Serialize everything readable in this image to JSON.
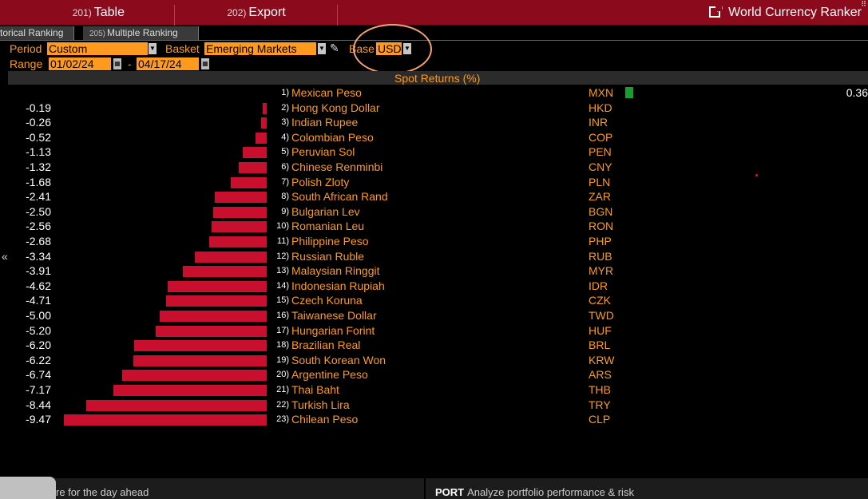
{
  "toolbar": {
    "table_num": "201)",
    "table_label": "Table",
    "export_num": "202)",
    "export_label": "Export",
    "title": "World Currency Ranker"
  },
  "tabs": [
    {
      "num": "",
      "label": "torical Ranking"
    },
    {
      "num": "205)",
      "label": "Multiple Ranking"
    }
  ],
  "controls": {
    "period_label": "Period",
    "period_value": "Custom",
    "basket_label": "Basket",
    "basket_value": "Emerging Markets",
    "base_label": "Base",
    "base_value": "USD",
    "range_label": "Range",
    "range_start": "01/02/24",
    "range_sep": "-",
    "range_end": "04/17/24"
  },
  "column_header": "Spot Returns (%)",
  "chart_data": {
    "type": "bar",
    "title": "Spot Returns (%)",
    "rows": [
      {
        "rank": "1)",
        "name": "Mexican Peso",
        "code": "MXN",
        "value": 0.36,
        "label": "0.36"
      },
      {
        "rank": "2)",
        "name": "Hong Kong Dollar",
        "code": "HKD",
        "value": -0.19,
        "label": "-0.19"
      },
      {
        "rank": "3)",
        "name": "Indian Rupee",
        "code": "INR",
        "value": -0.26,
        "label": "-0.26"
      },
      {
        "rank": "4)",
        "name": "Colombian Peso",
        "code": "COP",
        "value": -0.52,
        "label": "-0.52"
      },
      {
        "rank": "5)",
        "name": "Peruvian Sol",
        "code": "PEN",
        "value": -1.13,
        "label": "-1.13"
      },
      {
        "rank": "6)",
        "name": "Chinese Renminbi",
        "code": "CNY",
        "value": -1.32,
        "label": "-1.32"
      },
      {
        "rank": "7)",
        "name": "Polish Zloty",
        "code": "PLN",
        "value": -1.68,
        "label": "-1.68"
      },
      {
        "rank": "8)",
        "name": "South African Rand",
        "code": "ZAR",
        "value": -2.41,
        "label": "-2.41"
      },
      {
        "rank": "9)",
        "name": "Bulgarian Lev",
        "code": "BGN",
        "value": -2.5,
        "label": "-2.50"
      },
      {
        "rank": "10)",
        "name": "Romanian Leu",
        "code": "RON",
        "value": -2.56,
        "label": "-2.56"
      },
      {
        "rank": "11)",
        "name": "Philippine Peso",
        "code": "PHP",
        "value": -2.68,
        "label": "-2.68"
      },
      {
        "rank": "12)",
        "name": "Russian Ruble",
        "code": "RUB",
        "value": -3.34,
        "label": "-3.34"
      },
      {
        "rank": "13)",
        "name": "Malaysian Ringgit",
        "code": "MYR",
        "value": -3.91,
        "label": "-3.91"
      },
      {
        "rank": "14)",
        "name": "Indonesian Rupiah",
        "code": "IDR",
        "value": -4.62,
        "label": "-4.62"
      },
      {
        "rank": "15)",
        "name": "Czech Koruna",
        "code": "CZK",
        "value": -4.71,
        "label": "-4.71"
      },
      {
        "rank": "16)",
        "name": "Taiwanese Dollar",
        "code": "TWD",
        "value": -5.0,
        "label": "-5.00"
      },
      {
        "rank": "17)",
        "name": "Hungarian Forint",
        "code": "HUF",
        "value": -5.2,
        "label": "-5.20"
      },
      {
        "rank": "18)",
        "name": "Brazilian Real",
        "code": "BRL",
        "value": -6.2,
        "label": "-6.20"
      },
      {
        "rank": "19)",
        "name": "South Korean Won",
        "code": "KRW",
        "value": -6.22,
        "label": "-6.22"
      },
      {
        "rank": "20)",
        "name": "Argentine Peso",
        "code": "ARS",
        "value": -6.74,
        "label": "-6.74"
      },
      {
        "rank": "21)",
        "name": "Thai Baht",
        "code": "THB",
        "value": -7.17,
        "label": "-7.17"
      },
      {
        "rank": "22)",
        "name": "Turkish Lira",
        "code": "TRY",
        "value": -8.44,
        "label": "-8.44"
      },
      {
        "rank": "23)",
        "name": "Chilean Peso",
        "code": "CLP",
        "value": -9.47,
        "label": "-9.47"
      }
    ],
    "colors": {
      "negative": "#c8102e",
      "positive": "#1a9c2e"
    }
  },
  "footer": {
    "left_text": "re for the day ahead",
    "right_bold": "PORT",
    "right_text": "Analyze portfolio performance & risk"
  },
  "icons": {
    "collapse": "«"
  }
}
